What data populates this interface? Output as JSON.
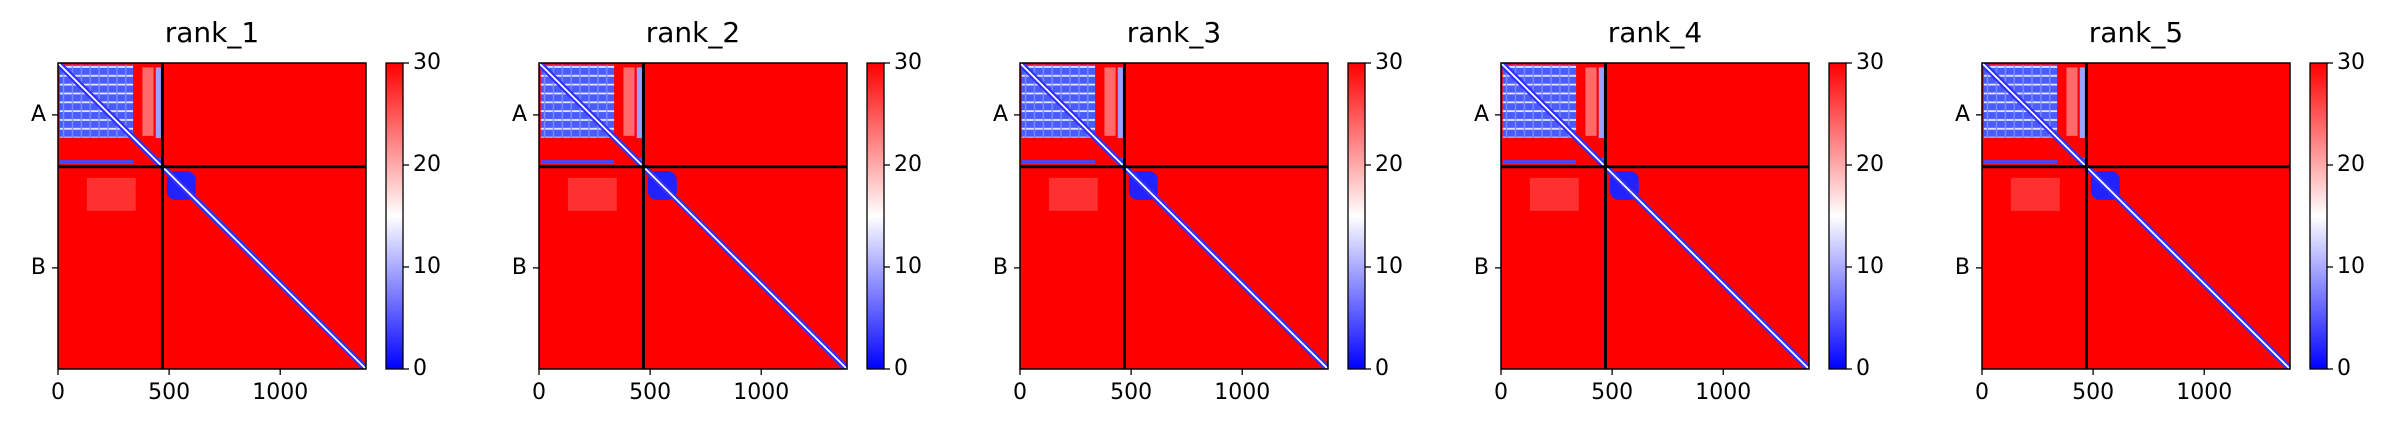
{
  "chart_data": [
    {
      "type": "heatmap",
      "title": "rank_1",
      "xlim": [
        0,
        1386
      ],
      "xticks": [
        0,
        500,
        1000
      ],
      "ylim": [
        1386,
        0
      ],
      "yticks": [
        {
          "value": 235,
          "label": "A"
        },
        {
          "value": 928,
          "label": "B"
        }
      ],
      "chain_breaks": [
        470
      ],
      "colorbar": {
        "lim": [
          0,
          30
        ],
        "ticks": [
          0,
          10,
          20,
          30
        ],
        "colors": [
          "#0000ff",
          "#ffffff",
          "#ff0000"
        ]
      }
    },
    {
      "type": "heatmap",
      "title": "rank_2",
      "xlim": [
        0,
        1386
      ],
      "xticks": [
        0,
        500,
        1000
      ],
      "ylim": [
        1386,
        0
      ],
      "yticks": [
        {
          "value": 235,
          "label": "A"
        },
        {
          "value": 928,
          "label": "B"
        }
      ],
      "chain_breaks": [
        470
      ],
      "colorbar": {
        "lim": [
          0,
          30
        ],
        "ticks": [
          0,
          10,
          20,
          30
        ],
        "colors": [
          "#0000ff",
          "#ffffff",
          "#ff0000"
        ]
      }
    },
    {
      "type": "heatmap",
      "title": "rank_3",
      "xlim": [
        0,
        1386
      ],
      "xticks": [
        0,
        500,
        1000
      ],
      "ylim": [
        1386,
        0
      ],
      "yticks": [
        {
          "value": 235,
          "label": "A"
        },
        {
          "value": 928,
          "label": "B"
        }
      ],
      "chain_breaks": [
        470
      ],
      "colorbar": {
        "lim": [
          0,
          30
        ],
        "ticks": [
          0,
          10,
          20,
          30
        ],
        "colors": [
          "#0000ff",
          "#ffffff",
          "#ff0000"
        ]
      }
    },
    {
      "type": "heatmap",
      "title": "rank_4",
      "xlim": [
        0,
        1386
      ],
      "xticks": [
        0,
        500,
        1000
      ],
      "ylim": [
        1386,
        0
      ],
      "yticks": [
        {
          "value": 235,
          "label": "A"
        },
        {
          "value": 928,
          "label": "B"
        }
      ],
      "chain_breaks": [
        470
      ],
      "colorbar": {
        "lim": [
          0,
          30
        ],
        "ticks": [
          0,
          10,
          20,
          30
        ],
        "colors": [
          "#0000ff",
          "#ffffff",
          "#ff0000"
        ]
      }
    },
    {
      "type": "heatmap",
      "title": "rank_5",
      "xlim": [
        0,
        1386
      ],
      "xticks": [
        0,
        500,
        1000
      ],
      "ylim": [
        1386,
        0
      ],
      "yticks": [
        {
          "value": 235,
          "label": "A"
        },
        {
          "value": 928,
          "label": "B"
        }
      ],
      "chain_breaks": [
        470
      ],
      "colorbar": {
        "lim": [
          0,
          30
        ],
        "ticks": [
          0,
          10,
          20,
          30
        ],
        "colors": [
          "#0000ff",
          "#ffffff",
          "#ff0000"
        ]
      }
    }
  ]
}
